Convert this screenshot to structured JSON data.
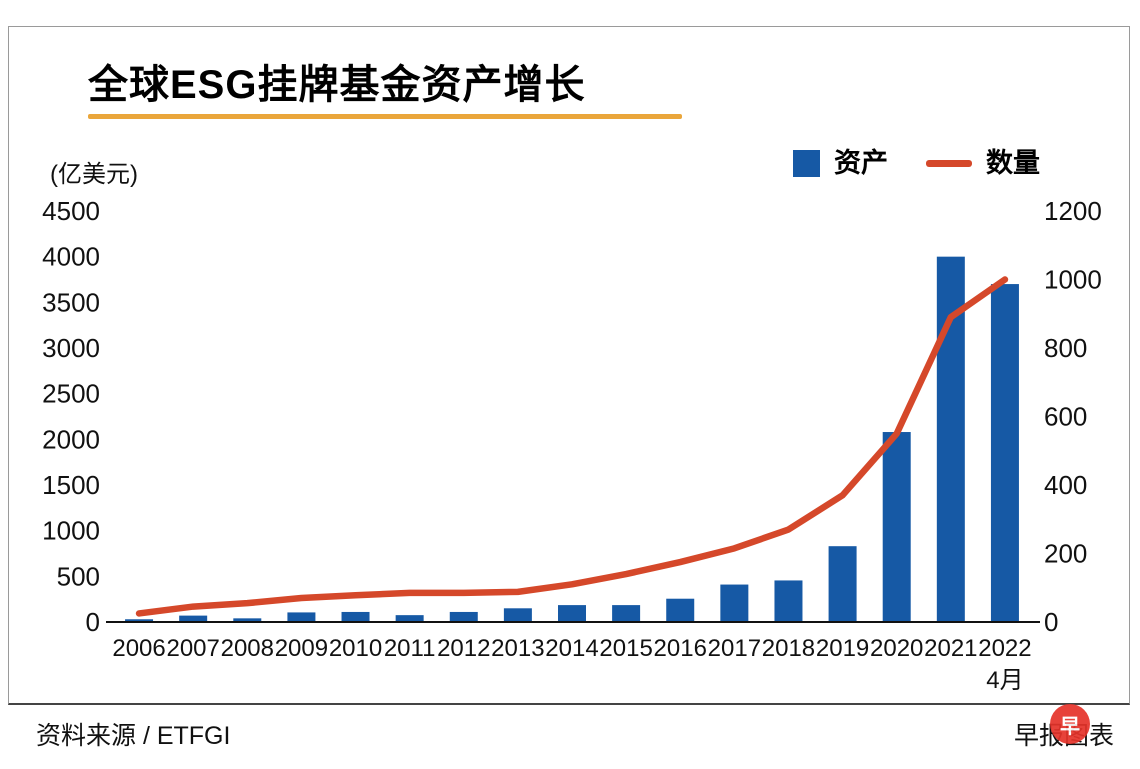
{
  "title": "全球ESG挂牌基金资产增长",
  "unit_label": "(亿美元)",
  "legend": {
    "assets_label": "资产",
    "count_label": "数量"
  },
  "footer": {
    "source": "资料来源 / ETFGI",
    "credit": "早报图表",
    "logo_glyph": "早"
  },
  "colors": {
    "bar": "#1659a5",
    "line": "#d5482a",
    "underline": "#eaa63b",
    "logo_red": "#e5332a",
    "axis_text": "#111111"
  },
  "chart_data": {
    "type": "bar",
    "subtype": "bar+line combo, dual axis",
    "title": "全球ESG挂牌基金资产增长",
    "categories": [
      "2006",
      "2007",
      "2008",
      "2009",
      "2010",
      "2011",
      "2012",
      "2013",
      "2014",
      "2015",
      "2016",
      "2017",
      "2018",
      "2019",
      "2020",
      "2021",
      "2022"
    ],
    "x_sub_label": {
      "index": 16,
      "label": "4月"
    },
    "series": [
      {
        "name": "资产",
        "type": "bar",
        "axis": "left",
        "values": [
          30,
          70,
          40,
          105,
          110,
          75,
          110,
          150,
          185,
          185,
          255,
          410,
          455,
          830,
          2080,
          4000,
          3700
        ]
      },
      {
        "name": "数量",
        "type": "line",
        "axis": "right",
        "values": [
          25,
          45,
          55,
          70,
          78,
          85,
          85,
          88,
          110,
          140,
          175,
          215,
          270,
          370,
          550,
          890,
          1000
        ]
      }
    ],
    "left_axis": {
      "label": "(亿美元)",
      "min": 0,
      "max": 4500,
      "ticks": [
        0,
        500,
        1000,
        1500,
        2000,
        2500,
        3000,
        3500,
        4000,
        4500
      ]
    },
    "right_axis": {
      "min": 0,
      "max": 1200,
      "ticks": [
        0,
        200,
        400,
        600,
        800,
        1000,
        1200
      ]
    },
    "grid": false,
    "legend_position": "top-right"
  }
}
